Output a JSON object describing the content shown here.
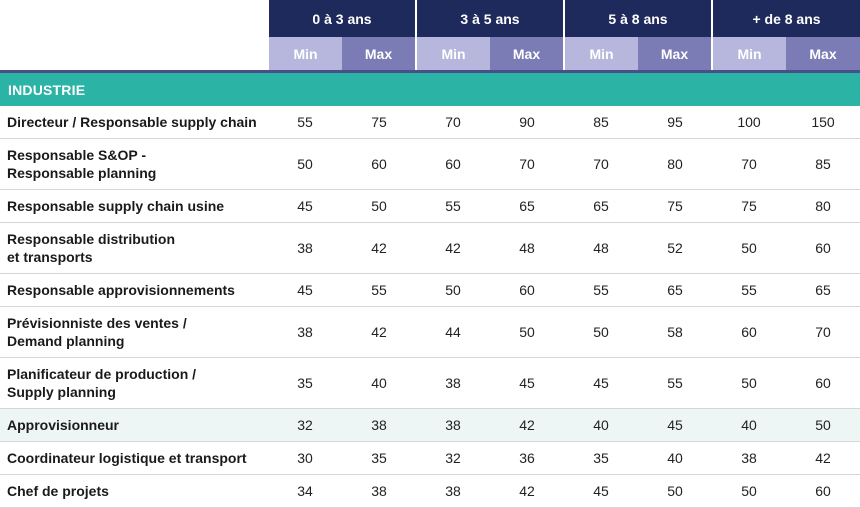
{
  "bands": [
    "0 à 3 ans",
    "3 à 5 ans",
    "5 à 8 ans",
    "+ de 8 ans"
  ],
  "sub_labels": {
    "min": "Min",
    "max": "Max"
  },
  "sector": "INDUSTRIE",
  "rows": [
    {
      "role_lines": [
        "Directeur / Responsable supply chain"
      ],
      "values": [
        55,
        75,
        70,
        90,
        85,
        95,
        100,
        150
      ]
    },
    {
      "role_lines": [
        "Responsable S&OP -",
        "Responsable planning"
      ],
      "values": [
        50,
        60,
        60,
        70,
        70,
        80,
        70,
        85
      ]
    },
    {
      "role_lines": [
        "Responsable supply chain usine"
      ],
      "values": [
        45,
        50,
        55,
        65,
        65,
        75,
        75,
        80
      ]
    },
    {
      "role_lines": [
        "Responsable distribution",
        "et transports"
      ],
      "values": [
        38,
        42,
        42,
        48,
        48,
        52,
        50,
        60
      ]
    },
    {
      "role_lines": [
        "Responsable approvisionnements"
      ],
      "values": [
        45,
        55,
        50,
        60,
        55,
        65,
        55,
        65
      ]
    },
    {
      "role_lines": [
        "Prévisionniste des ventes /",
        "Demand planning"
      ],
      "values": [
        38,
        42,
        44,
        50,
        50,
        58,
        60,
        70
      ]
    },
    {
      "role_lines": [
        "Planificateur de production /",
        "Supply planning"
      ],
      "values": [
        35,
        40,
        38,
        45,
        45,
        55,
        50,
        60
      ]
    },
    {
      "role_lines": [
        "Approvisionneur"
      ],
      "values": [
        32,
        38,
        38,
        42,
        40,
        45,
        40,
        50
      ]
    },
    {
      "role_lines": [
        "Coordinateur logistique et transport"
      ],
      "values": [
        30,
        35,
        32,
        36,
        35,
        40,
        38,
        42
      ]
    },
    {
      "role_lines": [
        "Chef de projets"
      ],
      "values": [
        34,
        38,
        38,
        42,
        45,
        50,
        50,
        60
      ]
    }
  ],
  "colors": {
    "header_band": "#1f2a5c",
    "min_header": "#b7b7de",
    "max_header": "#7b7bb5",
    "sector_bar": "#2bb3a6",
    "highlight_row": "#eef6f5"
  }
}
